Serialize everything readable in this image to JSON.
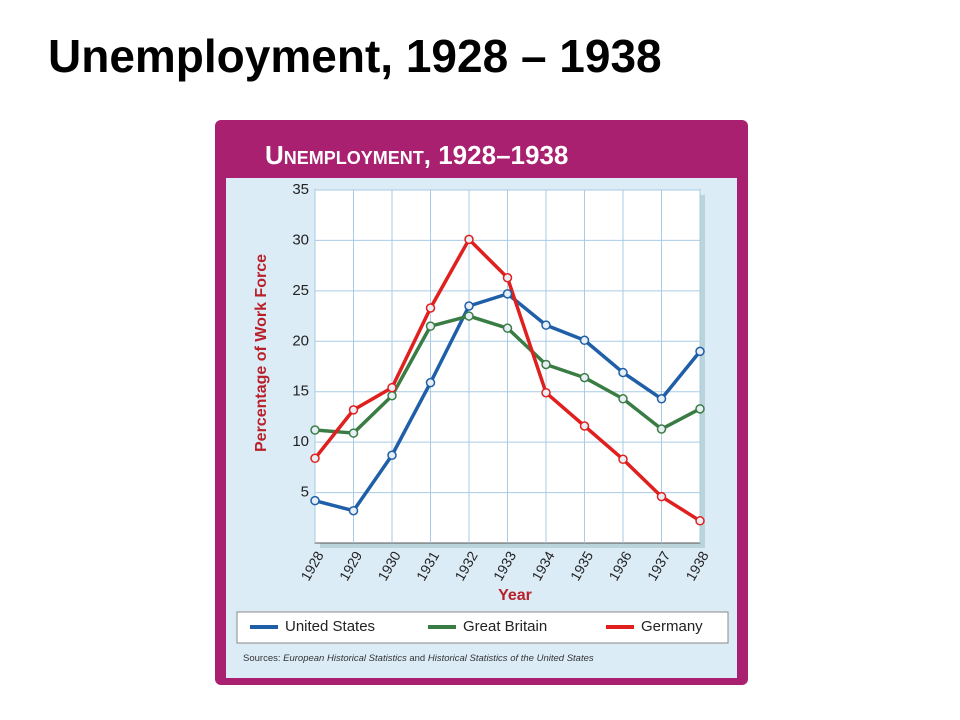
{
  "slide_title": "Unemployment, 1928 – 1938",
  "chart_data": {
    "type": "line",
    "title": "Unemployment, 1928–1938",
    "x_label": "Year",
    "y_label": "Percentage of Work Force",
    "categories": [
      "1928",
      "1929",
      "1930",
      "1931",
      "1932",
      "1933",
      "1934",
      "1935",
      "1936",
      "1937",
      "1938"
    ],
    "series": [
      {
        "name": "United States",
        "color": "#1f5fa8",
        "values": [
          4.2,
          3.2,
          8.7,
          15.9,
          23.5,
          24.7,
          21.6,
          20.1,
          16.9,
          14.3,
          19.0
        ]
      },
      {
        "name": "Great Britain",
        "color": "#3a7d44",
        "values": [
          11.2,
          10.9,
          14.6,
          21.5,
          22.5,
          21.3,
          17.7,
          16.4,
          14.3,
          11.3,
          13.3
        ]
      },
      {
        "name": "Germany",
        "color": "#e0201f",
        "values": [
          8.4,
          13.2,
          15.4,
          23.3,
          30.1,
          26.3,
          14.9,
          11.6,
          8.3,
          4.6,
          2.2
        ]
      }
    ],
    "ylim": [
      0,
      35
    ],
    "yticks": [
      5,
      10,
      15,
      20,
      25,
      30,
      35
    ],
    "grid": true,
    "source": [
      "Sources:",
      "European Historical Statistics",
      "and",
      "Historical Statistics of the United States"
    ]
  }
}
